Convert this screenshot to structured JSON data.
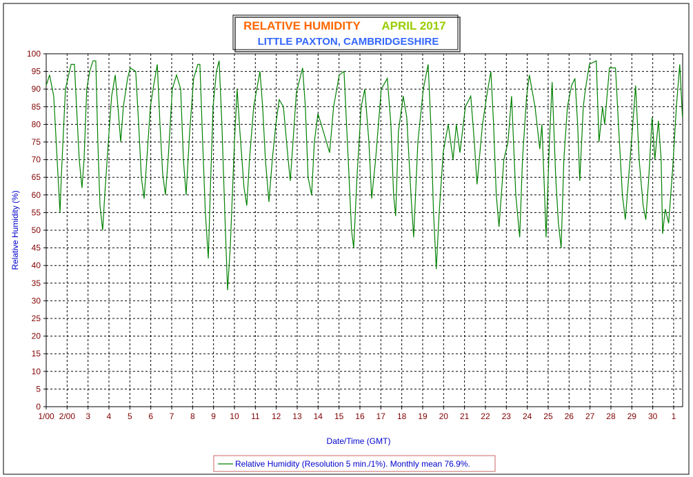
{
  "chart_data": {
    "type": "line",
    "title_parts": [
      "RELATIVE HUMIDITY",
      "APRIL 2017"
    ],
    "title_colors": [
      "#ff6600",
      "#99cc00"
    ],
    "subtitle": "LITTLE PAXTON, CAMBRIDGESHIRE",
    "x_label": "Date/Time (GMT)",
    "y_label": "Relative Humidity (%)",
    "x": [
      1.0,
      1.16,
      1.36,
      1.66,
      1.73,
      1.92,
      2.19,
      2.35,
      2.58,
      2.71,
      2.81,
      2.94,
      3.08,
      3.24,
      3.37,
      3.47,
      3.57,
      3.7,
      3.8,
      3.97,
      4.13,
      4.3,
      4.43,
      4.56,
      4.69,
      4.89,
      5.02,
      5.28,
      5.42,
      5.55,
      5.68,
      5.81,
      5.98,
      6.11,
      6.31,
      6.44,
      6.57,
      6.7,
      6.83,
      7.03,
      7.23,
      7.43,
      7.56,
      7.69,
      7.86,
      8.05,
      8.25,
      8.35,
      8.48,
      8.61,
      8.75,
      8.84,
      8.98,
      9.14,
      9.27,
      9.4,
      9.54,
      9.67,
      9.8,
      10.0,
      10.13,
      10.26,
      10.46,
      10.59,
      10.72,
      10.92,
      11.22,
      11.35,
      11.48,
      11.65,
      11.81,
      11.98,
      12.14,
      12.34,
      12.57,
      12.67,
      12.8,
      12.96,
      13.26,
      13.39,
      13.52,
      13.69,
      13.82,
      13.99,
      14.15,
      14.55,
      14.74,
      15.01,
      15.24,
      15.44,
      15.6,
      15.7,
      15.86,
      16.06,
      16.23,
      16.43,
      16.56,
      16.75,
      17.02,
      17.31,
      17.48,
      17.61,
      17.71,
      17.84,
      18.07,
      18.24,
      18.44,
      18.57,
      18.77,
      19.03,
      19.26,
      19.39,
      19.52,
      19.65,
      19.79,
      19.98,
      20.22,
      20.45,
      20.61,
      20.78,
      21.04,
      21.3,
      21.47,
      21.6,
      21.86,
      22.06,
      22.26,
      22.39,
      22.52,
      22.65,
      22.88,
      23.08,
      23.25,
      23.45,
      23.64,
      23.77,
      23.97,
      24.1,
      24.37,
      24.6,
      24.7,
      24.83,
      24.9,
      25.06,
      25.19,
      25.36,
      25.49,
      25.62,
      25.75,
      25.92,
      26.12,
      26.28,
      26.41,
      26.51,
      26.68,
      26.78,
      26.97,
      27.3,
      27.43,
      27.6,
      27.7,
      27.93,
      28.22,
      28.36,
      28.55,
      28.69,
      28.85,
      29.02,
      29.18,
      29.35,
      29.54,
      29.67,
      29.81,
      29.97,
      30.1,
      30.27,
      30.4,
      30.47,
      30.6,
      30.76,
      30.96,
      31.13,
      31.29,
      31.42
    ],
    "series": [
      {
        "name": "Relative Humidity (Resolution 5 min./1%). Monthly mean 76.9%.",
        "color": "#008000",
        "values": [
          91,
          94,
          88,
          55,
          66,
          90,
          97,
          97,
          70,
          62,
          70,
          90,
          95,
          98,
          98,
          75,
          57,
          50,
          60,
          75,
          88,
          94,
          85,
          75,
          85,
          93,
          96,
          95,
          80,
          65,
          59,
          70,
          85,
          90,
          97,
          80,
          66,
          60,
          70,
          90,
          94,
          90,
          70,
          60,
          78,
          93,
          97,
          97,
          75,
          55,
          42,
          60,
          85,
          95,
          98,
          80,
          55,
          33,
          45,
          75,
          90,
          78,
          62,
          57,
          70,
          85,
          95,
          85,
          70,
          58,
          70,
          80,
          87,
          85,
          70,
          64,
          75,
          89,
          96,
          85,
          65,
          60,
          75,
          83,
          80,
          72,
          85,
          94,
          95,
          70,
          50,
          45,
          65,
          85,
          90,
          75,
          59,
          70,
          90,
          93,
          80,
          60,
          54,
          78,
          88,
          82,
          60,
          48,
          75,
          90,
          97,
          80,
          55,
          39,
          55,
          72,
          80,
          70,
          80,
          72,
          85,
          88,
          75,
          63,
          80,
          88,
          95,
          80,
          60,
          51,
          70,
          75,
          88,
          60,
          48,
          70,
          88,
          94,
          85,
          73,
          80,
          60,
          48,
          75,
          92,
          65,
          52,
          45,
          70,
          85,
          91,
          93,
          80,
          64,
          85,
          90,
          97,
          98,
          75,
          85,
          80,
          96,
          96,
          80,
          60,
          53,
          65,
          78,
          91,
          70,
          57,
          53,
          65,
          82,
          70,
          81,
          70,
          49,
          56,
          52,
          68,
          85,
          97,
          82
        ]
      }
    ],
    "xlim": [
      1,
      31.43
    ],
    "xticks": [
      {
        "value": 1,
        "label": "1/00"
      },
      {
        "value": 2,
        "label": "2/00"
      },
      3,
      4,
      5,
      6,
      7,
      8,
      9,
      10,
      11,
      12,
      13,
      14,
      15,
      16,
      17,
      18,
      19,
      20,
      21,
      22,
      23,
      24,
      25,
      26,
      27,
      28,
      29,
      30,
      {
        "value": 31,
        "label": "1"
      }
    ],
    "ylim": [
      0,
      100
    ],
    "yticks": [
      0,
      5,
      10,
      15,
      20,
      25,
      30,
      35,
      40,
      45,
      50,
      55,
      60,
      65,
      70,
      75,
      80,
      85,
      90,
      95,
      100
    ],
    "grid": true
  }
}
